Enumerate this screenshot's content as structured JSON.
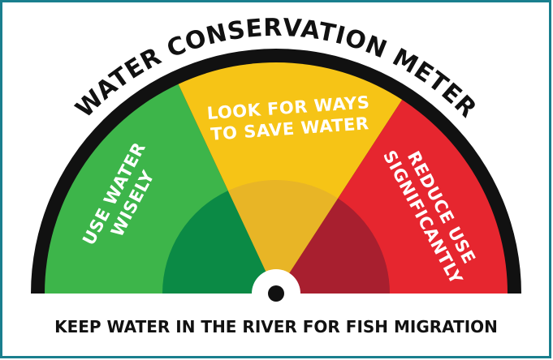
{
  "title": "WATER CONSERVATION METER",
  "sections": [
    {
      "lines": [
        "USE WATER",
        "WISELY"
      ]
    },
    {
      "lines": [
        "LOOK FOR WAYS",
        "TO SAVE WATER"
      ]
    },
    {
      "lines": [
        "REDUCE USE",
        "SIGNIFICANTLY"
      ]
    }
  ],
  "footer": "KEEP WATER IN THE RIVER FOR FISH MIGRATION"
}
